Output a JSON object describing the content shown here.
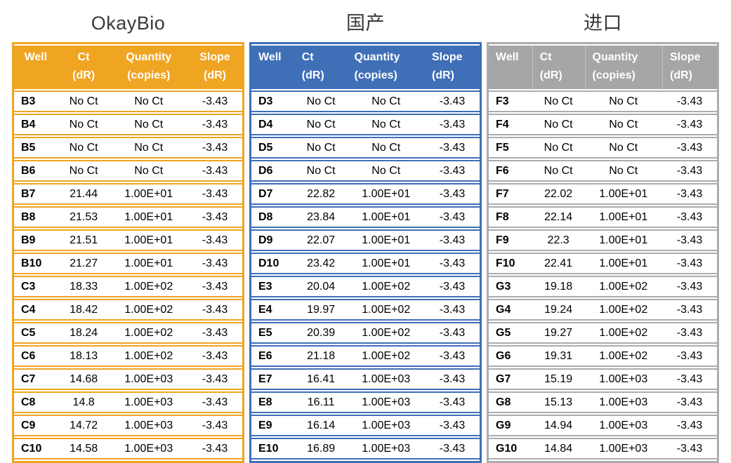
{
  "page": {
    "colors": {
      "background": "#FFFFFF",
      "title_text": "#3A3A3A",
      "cell_text": "#000000",
      "header_text": "#FFFFFF"
    }
  },
  "tables": [
    {
      "title": "OkayBio",
      "header_align": "center",
      "header_dividers": false,
      "colors": {
        "header_bg": "#EFA522",
        "border": "#EFA522"
      },
      "columns": [
        {
          "line1": "Well",
          "line2": ""
        },
        {
          "line1": "Ct",
          "line2": "(dR)"
        },
        {
          "line1": "Quantity",
          "line2": "(copies)"
        },
        {
          "line1": "Slope",
          "line2": "(dR)"
        }
      ],
      "rows": [
        [
          "B3",
          "No Ct",
          "No Ct",
          "-3.43"
        ],
        [
          "B4",
          "No Ct",
          "No Ct",
          "-3.43"
        ],
        [
          "B5",
          "No Ct",
          "No Ct",
          "-3.43"
        ],
        [
          "B6",
          "No Ct",
          "No Ct",
          "-3.43"
        ],
        [
          "B7",
          "21.44",
          "1.00E+01",
          "-3.43"
        ],
        [
          "B8",
          "21.53",
          "1.00E+01",
          "-3.43"
        ],
        [
          "B9",
          "21.51",
          "1.00E+01",
          "-3.43"
        ],
        [
          "B10",
          "21.27",
          "1.00E+01",
          "-3.43"
        ],
        [
          "C3",
          "18.33",
          "1.00E+02",
          "-3.43"
        ],
        [
          "C4",
          "18.42",
          "1.00E+02",
          "-3.43"
        ],
        [
          "C5",
          "18.24",
          "1.00E+02",
          "-3.43"
        ],
        [
          "C6",
          "18.13",
          "1.00E+02",
          "-3.43"
        ],
        [
          "C7",
          "14.68",
          "1.00E+03",
          "-3.43"
        ],
        [
          "C8",
          "14.8",
          "1.00E+03",
          "-3.43"
        ],
        [
          "C9",
          "14.72",
          "1.00E+03",
          "-3.43"
        ],
        [
          "C10",
          "14.58",
          "1.00E+03",
          "-3.43"
        ]
      ]
    },
    {
      "title": "国产",
      "header_align": "left",
      "header_dividers": false,
      "colors": {
        "header_bg": "#3F6FB7",
        "border": "#3F6FB7"
      },
      "columns": [
        {
          "line1": "Well",
          "line2": ""
        },
        {
          "line1": "Ct",
          "line2": "(dR)"
        },
        {
          "line1": "Quantity",
          "line2": "(copies)"
        },
        {
          "line1": "Slope",
          "line2": "(dR)"
        }
      ],
      "rows": [
        [
          "D3",
          "No Ct",
          "No Ct",
          "-3.43"
        ],
        [
          "D4",
          "No Ct",
          "No Ct",
          "-3.43"
        ],
        [
          "D5",
          "No Ct",
          "No Ct",
          "-3.43"
        ],
        [
          "D6",
          "No Ct",
          "No Ct",
          "-3.43"
        ],
        [
          "D7",
          "22.82",
          "1.00E+01",
          "-3.43"
        ],
        [
          "D8",
          "23.84",
          "1.00E+01",
          "-3.43"
        ],
        [
          "D9",
          "22.07",
          "1.00E+01",
          "-3.43"
        ],
        [
          "D10",
          "23.42",
          "1.00E+01",
          "-3.43"
        ],
        [
          "E3",
          "20.04",
          "1.00E+02",
          "-3.43"
        ],
        [
          "E4",
          "19.97",
          "1.00E+02",
          "-3.43"
        ],
        [
          "E5",
          "20.39",
          "1.00E+02",
          "-3.43"
        ],
        [
          "E6",
          "21.18",
          "1.00E+02",
          "-3.43"
        ],
        [
          "E7",
          "16.41",
          "1.00E+03",
          "-3.43"
        ],
        [
          "E8",
          "16.11",
          "1.00E+03",
          "-3.43"
        ],
        [
          "E9",
          "16.14",
          "1.00E+03",
          "-3.43"
        ],
        [
          "E10",
          "16.89",
          "1.00E+03",
          "-3.43"
        ]
      ]
    },
    {
      "title": "进口",
      "header_align": "left",
      "header_dividers": true,
      "colors": {
        "header_bg": "#A6A6A6",
        "border": "#ACACAC"
      },
      "columns": [
        {
          "line1": "Well",
          "line2": ""
        },
        {
          "line1": "Ct",
          "line2": "(dR)"
        },
        {
          "line1": "Quantity",
          "line2": "(copies)"
        },
        {
          "line1": "Slope",
          "line2": "(dR)"
        }
      ],
      "rows": [
        [
          "F3",
          "No Ct",
          "No Ct",
          "-3.43"
        ],
        [
          "F4",
          "No Ct",
          "No Ct",
          "-3.43"
        ],
        [
          "F5",
          "No Ct",
          "No Ct",
          "-3.43"
        ],
        [
          "F6",
          "No Ct",
          "No Ct",
          "-3.43"
        ],
        [
          "F7",
          "22.02",
          "1.00E+01",
          "-3.43"
        ],
        [
          "F8",
          "22.14",
          "1.00E+01",
          "-3.43"
        ],
        [
          "F9",
          "22.3",
          "1.00E+01",
          "-3.43"
        ],
        [
          "F10",
          "22.41",
          "1.00E+01",
          "-3.43"
        ],
        [
          "G3",
          "19.18",
          "1.00E+02",
          "-3.43"
        ],
        [
          "G4",
          "19.24",
          "1.00E+02",
          "-3.43"
        ],
        [
          "G5",
          "19.27",
          "1.00E+02",
          "-3.43"
        ],
        [
          "G6",
          "19.31",
          "1.00E+02",
          "-3.43"
        ],
        [
          "G7",
          "15.19",
          "1.00E+03",
          "-3.43"
        ],
        [
          "G8",
          "15.13",
          "1.00E+03",
          "-3.43"
        ],
        [
          "G9",
          "14.94",
          "1.00E+03",
          "-3.43"
        ],
        [
          "G10",
          "14.84",
          "1.00E+03",
          "-3.43"
        ]
      ]
    }
  ]
}
